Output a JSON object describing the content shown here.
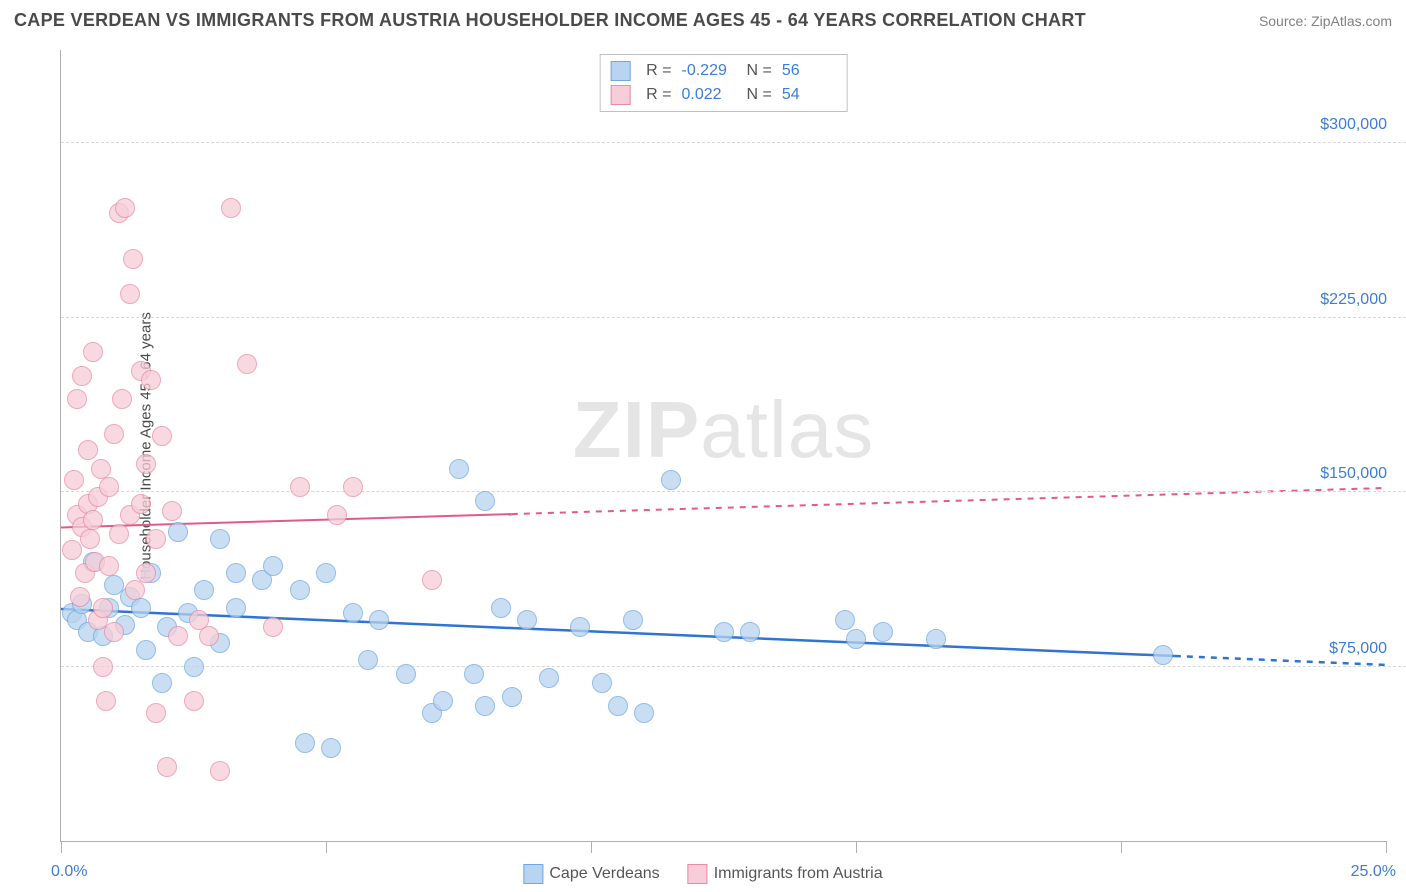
{
  "header": {
    "title": "CAPE VERDEAN VS IMMIGRANTS FROM AUSTRIA HOUSEHOLDER INCOME AGES 45 - 64 YEARS CORRELATION CHART",
    "source": "Source: ZipAtlas.com"
  },
  "chart": {
    "type": "scatter",
    "ylabel": "Householder Income Ages 45 - 64 years",
    "xlim": [
      0,
      25
    ],
    "ylim": [
      0,
      340000
    ],
    "x_ticks_pct": [
      0,
      20,
      40,
      60,
      80,
      100
    ],
    "x_axis_labels": {
      "min": "0.0%",
      "max": "25.0%"
    },
    "y_gridlines": [
      75000,
      150000,
      225000,
      300000
    ],
    "y_labels": [
      "$75,000",
      "$150,000",
      "$225,000",
      "$300,000"
    ],
    "grid_color": "#d8d8d8",
    "axis_color": "#b0b0b0",
    "background_color": "#ffffff",
    "label_color": "#3b7dd8",
    "series": [
      {
        "name": "Cape Verdeans",
        "fill": "#b8d4f0",
        "stroke": "#6fa8e0",
        "stroke_width": 1,
        "line_color": "#2e74d0",
        "line_width": 2.5,
        "marker_radius": 10,
        "fill_opacity": 0.75,
        "R": "-0.229",
        "N": "56",
        "trend": {
          "x1": 0,
          "y1": 100000,
          "x2": 25,
          "y2": 76000,
          "solid_until_x": 21
        },
        "points": [
          {
            "x": 0.2,
            "y": 98000
          },
          {
            "x": 0.3,
            "y": 95000
          },
          {
            "x": 0.4,
            "y": 102000
          },
          {
            "x": 0.5,
            "y": 90000
          },
          {
            "x": 0.6,
            "y": 120000
          },
          {
            "x": 0.8,
            "y": 88000
          },
          {
            "x": 0.9,
            "y": 100000
          },
          {
            "x": 1.0,
            "y": 110000
          },
          {
            "x": 1.2,
            "y": 93000
          },
          {
            "x": 1.3,
            "y": 105000
          },
          {
            "x": 1.5,
            "y": 100000
          },
          {
            "x": 1.6,
            "y": 82000
          },
          {
            "x": 1.7,
            "y": 115000
          },
          {
            "x": 1.9,
            "y": 68000
          },
          {
            "x": 2.0,
            "y": 92000
          },
          {
            "x": 2.2,
            "y": 133000
          },
          {
            "x": 2.4,
            "y": 98000
          },
          {
            "x": 2.5,
            "y": 75000
          },
          {
            "x": 2.7,
            "y": 108000
          },
          {
            "x": 3.0,
            "y": 130000
          },
          {
            "x": 3.0,
            "y": 85000
          },
          {
            "x": 3.3,
            "y": 115000
          },
          {
            "x": 3.3,
            "y": 100000
          },
          {
            "x": 3.8,
            "y": 112000
          },
          {
            "x": 4.0,
            "y": 118000
          },
          {
            "x": 4.5,
            "y": 108000
          },
          {
            "x": 4.6,
            "y": 42000
          },
          {
            "x": 5.0,
            "y": 115000
          },
          {
            "x": 5.1,
            "y": 40000
          },
          {
            "x": 5.5,
            "y": 98000
          },
          {
            "x": 5.8,
            "y": 78000
          },
          {
            "x": 6.0,
            "y": 95000
          },
          {
            "x": 6.5,
            "y": 72000
          },
          {
            "x": 7.0,
            "y": 55000
          },
          {
            "x": 7.2,
            "y": 60000
          },
          {
            "x": 7.5,
            "y": 160000
          },
          {
            "x": 7.8,
            "y": 72000
          },
          {
            "x": 8.0,
            "y": 58000
          },
          {
            "x": 8.3,
            "y": 100000
          },
          {
            "x": 8.0,
            "y": 146000
          },
          {
            "x": 8.5,
            "y": 62000
          },
          {
            "x": 8.8,
            "y": 95000
          },
          {
            "x": 9.2,
            "y": 70000
          },
          {
            "x": 9.8,
            "y": 92000
          },
          {
            "x": 10.2,
            "y": 68000
          },
          {
            "x": 10.5,
            "y": 58000
          },
          {
            "x": 10.8,
            "y": 95000
          },
          {
            "x": 11.0,
            "y": 55000
          },
          {
            "x": 11.5,
            "y": 155000
          },
          {
            "x": 12.5,
            "y": 90000
          },
          {
            "x": 14.8,
            "y": 95000
          },
          {
            "x": 15.0,
            "y": 87000
          },
          {
            "x": 15.5,
            "y": 90000
          },
          {
            "x": 16.5,
            "y": 87000
          },
          {
            "x": 20.8,
            "y": 80000
          },
          {
            "x": 13.0,
            "y": 90000
          }
        ]
      },
      {
        "name": "Immigrants from Austria",
        "fill": "#f6cdd8",
        "stroke": "#e88ba5",
        "stroke_width": 1,
        "line_color": "#e05a8a",
        "line_width": 2,
        "marker_radius": 10,
        "fill_opacity": 0.75,
        "R": "0.022",
        "N": "54",
        "trend": {
          "x1": 0,
          "y1": 135000,
          "x2": 25,
          "y2": 152000,
          "solid_until_x": 8.5
        },
        "points": [
          {
            "x": 0.2,
            "y": 125000
          },
          {
            "x": 0.25,
            "y": 155000
          },
          {
            "x": 0.3,
            "y": 140000
          },
          {
            "x": 0.3,
            "y": 190000
          },
          {
            "x": 0.35,
            "y": 105000
          },
          {
            "x": 0.4,
            "y": 135000
          },
          {
            "x": 0.4,
            "y": 200000
          },
          {
            "x": 0.45,
            "y": 115000
          },
          {
            "x": 0.5,
            "y": 145000
          },
          {
            "x": 0.5,
            "y": 168000
          },
          {
            "x": 0.55,
            "y": 130000
          },
          {
            "x": 0.6,
            "y": 210000
          },
          {
            "x": 0.6,
            "y": 138000
          },
          {
            "x": 0.65,
            "y": 120000
          },
          {
            "x": 0.7,
            "y": 148000
          },
          {
            "x": 0.7,
            "y": 95000
          },
          {
            "x": 0.75,
            "y": 160000
          },
          {
            "x": 0.8,
            "y": 100000
          },
          {
            "x": 0.8,
            "y": 75000
          },
          {
            "x": 0.85,
            "y": 60000
          },
          {
            "x": 0.9,
            "y": 152000
          },
          {
            "x": 0.9,
            "y": 118000
          },
          {
            "x": 1.0,
            "y": 175000
          },
          {
            "x": 1.0,
            "y": 90000
          },
          {
            "x": 1.1,
            "y": 132000
          },
          {
            "x": 1.1,
            "y": 270000
          },
          {
            "x": 1.15,
            "y": 190000
          },
          {
            "x": 1.2,
            "y": 272000
          },
          {
            "x": 1.3,
            "y": 140000
          },
          {
            "x": 1.3,
            "y": 235000
          },
          {
            "x": 1.35,
            "y": 250000
          },
          {
            "x": 1.4,
            "y": 108000
          },
          {
            "x": 1.5,
            "y": 145000
          },
          {
            "x": 1.5,
            "y": 202000
          },
          {
            "x": 1.6,
            "y": 162000
          },
          {
            "x": 1.6,
            "y": 115000
          },
          {
            "x": 1.7,
            "y": 198000
          },
          {
            "x": 1.8,
            "y": 130000
          },
          {
            "x": 1.8,
            "y": 55000
          },
          {
            "x": 1.9,
            "y": 174000
          },
          {
            "x": 2.0,
            "y": 32000
          },
          {
            "x": 2.1,
            "y": 142000
          },
          {
            "x": 2.2,
            "y": 88000
          },
          {
            "x": 2.5,
            "y": 60000
          },
          {
            "x": 2.6,
            "y": 95000
          },
          {
            "x": 2.8,
            "y": 88000
          },
          {
            "x": 3.0,
            "y": 30000
          },
          {
            "x": 3.2,
            "y": 272000
          },
          {
            "x": 3.5,
            "y": 205000
          },
          {
            "x": 4.0,
            "y": 92000
          },
          {
            "x": 4.5,
            "y": 152000
          },
          {
            "x": 5.2,
            "y": 140000
          },
          {
            "x": 5.5,
            "y": 152000
          },
          {
            "x": 7.0,
            "y": 112000
          }
        ]
      }
    ],
    "bottom_legend": [
      {
        "label": "Cape Verdeans",
        "fill": "#b8d4f0",
        "stroke": "#6fa8e0"
      },
      {
        "label": "Immigrants from Austria",
        "fill": "#f6cdd8",
        "stroke": "#e88ba5"
      }
    ],
    "watermark": {
      "part1": "ZIP",
      "part2": "atlas"
    }
  }
}
